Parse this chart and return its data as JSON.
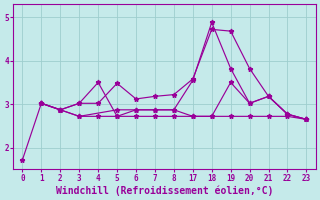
{
  "background_color": "#c5eaea",
  "grid_color": "#9ecece",
  "line_color": "#990099",
  "xlabel": "Windchill (Refroidissement éolien,°C)",
  "xlabel_fontsize": 7.0,
  "ylim": [
    1.5,
    5.3
  ],
  "yticks": [
    2,
    3,
    4,
    5
  ],
  "tick_labels": [
    "0",
    "1",
    "2",
    "3",
    "4",
    "5",
    "6",
    "7",
    "8",
    "17",
    "18",
    "19",
    "20",
    "21",
    "22",
    "23"
  ],
  "line1_x": [
    0,
    1,
    2,
    3,
    4,
    5,
    6,
    7,
    8,
    9,
    10,
    11,
    12,
    13,
    14,
    15
  ],
  "line1_y": [
    1.72,
    3.02,
    2.87,
    3.02,
    3.5,
    2.72,
    2.87,
    2.87,
    2.87,
    3.55,
    4.88,
    3.82,
    3.02,
    3.18,
    2.77,
    2.65
  ],
  "line1_style": "-",
  "line2_x": [
    1,
    2,
    3,
    4,
    5,
    6,
    7,
    8,
    9,
    10,
    11,
    12,
    13,
    14,
    15
  ],
  "line2_y": [
    3.02,
    2.87,
    3.02,
    3.02,
    3.48,
    3.12,
    3.18,
    3.22,
    3.58,
    4.72,
    4.68,
    3.82,
    3.18,
    2.77,
    2.65
  ],
  "line2_style": "-",
  "line3_x": [
    1,
    2,
    3,
    4,
    5,
    6,
    7,
    8,
    9,
    10,
    11,
    12,
    13,
    14,
    15
  ],
  "line3_y": [
    3.02,
    2.87,
    2.72,
    2.72,
    2.72,
    2.72,
    2.72,
    2.72,
    2.72,
    2.72,
    2.72,
    2.72,
    2.72,
    2.72,
    2.65
  ],
  "line3_style": "-",
  "line4_x": [
    1,
    2,
    3,
    5,
    6,
    7,
    8,
    9,
    10,
    11,
    12,
    13,
    14,
    15
  ],
  "line4_y": [
    3.02,
    2.87,
    2.72,
    2.87,
    2.87,
    2.87,
    2.87,
    2.72,
    2.72,
    3.5,
    3.02,
    3.18,
    2.77,
    2.65
  ],
  "line4_style": "-"
}
